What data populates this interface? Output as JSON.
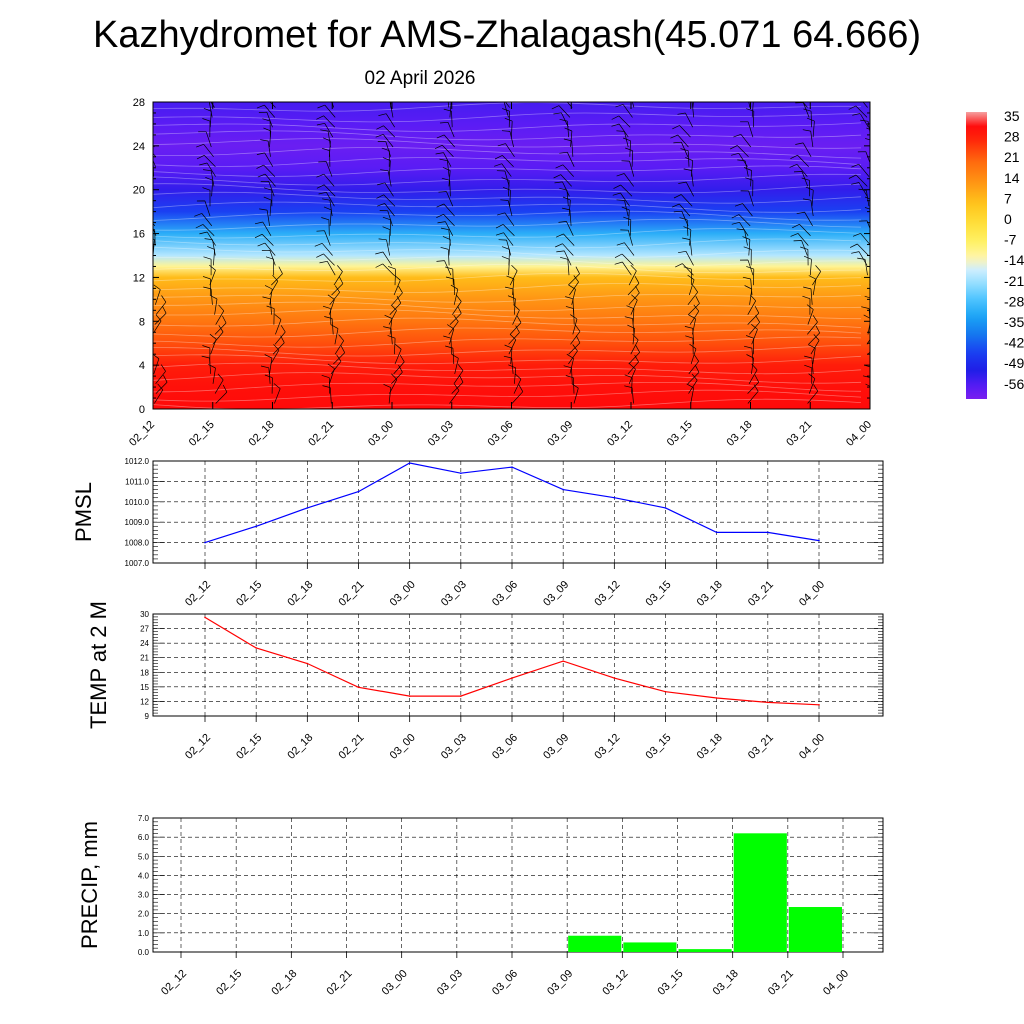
{
  "header": {
    "title": "Kazhydromet for AMS-Zhalagash(45.071 64.666)",
    "date": "02 April 2026"
  },
  "colors": {
    "pmsl_line": "#0000ff",
    "temp_line": "#ff0000",
    "precip_bar": "#00ff00",
    "grid": "#000000"
  },
  "chart_data": [
    {
      "id": "cross_section",
      "type": "heatmap",
      "title": "",
      "xlabel": "",
      "ylabel": "",
      "x_categories": [
        "02_12",
        "02_15",
        "02_18",
        "02_21",
        "03_00",
        "03_03",
        "03_06",
        "03_09",
        "03_12",
        "03_15",
        "03_18",
        "03_21",
        "04_00"
      ],
      "yticks": [
        0,
        4,
        8,
        12,
        16,
        20,
        24,
        28
      ],
      "ylim": [
        0,
        28
      ],
      "value_range": [
        -60,
        38
      ],
      "temperature_by_level": {
        "levels": [
          0,
          2,
          4,
          6,
          8,
          10,
          12,
          13,
          14,
          16,
          18,
          20,
          22,
          24,
          26,
          28
        ],
        "values": [
          33,
          32,
          30,
          24,
          19,
          14,
          8,
          -10,
          -18,
          -30,
          -44,
          -52,
          -56,
          -58,
          -56,
          -54
        ]
      },
      "colorbar": {
        "labels": [
          "35",
          "28",
          "21",
          "14",
          "7",
          "0",
          "-7",
          "-14",
          "-21",
          "-28",
          "-35",
          "-42",
          "-49",
          "-56"
        ]
      },
      "wind_barbs": "per-level wind barbs at each time step"
    },
    {
      "id": "pmsl",
      "type": "line",
      "ylabel": "PMSL",
      "categories": [
        "02_12",
        "02_15",
        "02_18",
        "02_21",
        "03_00",
        "03_03",
        "03_06",
        "03_09",
        "03_12",
        "03_15",
        "03_18",
        "03_21",
        "04_00"
      ],
      "values": [
        1008.0,
        1008.8,
        1009.7,
        1010.5,
        1011.9,
        1011.4,
        1011.7,
        1010.6,
        1010.2,
        1009.7,
        1008.5,
        1008.5,
        1008.1
      ],
      "ylim": [
        1007.0,
        1012.0
      ],
      "yticks": [
        "1007.0",
        "1008.0",
        "1009.0",
        "1010.0",
        "1011.0",
        "1012.0"
      ]
    },
    {
      "id": "temp2m",
      "type": "line",
      "ylabel": "TEMP at 2 M",
      "categories": [
        "02_12",
        "02_15",
        "02_18",
        "02_21",
        "03_00",
        "03_03",
        "03_06",
        "03_09",
        "03_12",
        "03_15",
        "03_18",
        "03_21",
        "04_00"
      ],
      "values": [
        29.3,
        23.0,
        19.8,
        14.9,
        13.1,
        13.1,
        16.8,
        20.3,
        16.8,
        14.0,
        12.7,
        11.8,
        11.3
      ],
      "ylim": [
        9,
        30
      ],
      "yticks": [
        "9",
        "12",
        "15",
        "18",
        "21",
        "24",
        "27",
        "30"
      ]
    },
    {
      "id": "precip",
      "type": "bar",
      "ylabel": "PRECIP, mm",
      "categories": [
        "02_12",
        "02_15",
        "02_18",
        "02_21",
        "03_00",
        "03_03",
        "03_06",
        "03_09",
        "03_12",
        "03_15",
        "03_18",
        "03_21",
        "04_00"
      ],
      "values": [
        0,
        0,
        0,
        0,
        0,
        0,
        0,
        0,
        0.85,
        0.5,
        0.15,
        6.2,
        2.35
      ],
      "ylim": [
        0,
        7.0
      ],
      "yticks": [
        "0.0",
        "1.0",
        "2.0",
        "3.0",
        "4.0",
        "5.0",
        "6.0",
        "7.0"
      ]
    }
  ]
}
